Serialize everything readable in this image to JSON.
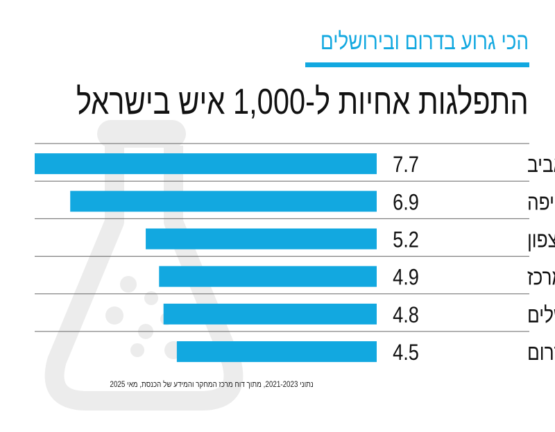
{
  "kicker": "הכי גרוע בדרום ובירושלים",
  "colors": {
    "accent": "#12a8e0",
    "bar": "#12a8e0",
    "text": "#111111",
    "gridline": "#666666",
    "flask": "#ececec"
  },
  "chart_data": {
    "type": "bar",
    "orientation": "horizontal",
    "title": "התפלגות אחיות ל-1,000 איש בישראל",
    "categories": [
      "תל אביב",
      "חיפה",
      "צפון",
      "מרכז",
      "ירושלים",
      "דרום"
    ],
    "values": [
      7.7,
      6.9,
      5.2,
      4.9,
      4.8,
      4.5
    ],
    "value_labels": [
      "7.7",
      "6.9",
      "5.2",
      "4.9",
      "4.8",
      "4.5"
    ],
    "xlim": [
      0,
      7.7
    ],
    "grid": false,
    "bar_direction": "right-to-left"
  },
  "source": "נתוני 2021-2023, מתוך דוח מרכז המחקר והמידע של הכנסת, מאי 2025",
  "background_icon": "flask-icon"
}
